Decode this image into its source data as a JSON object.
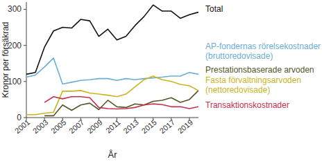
{
  "chart_data": {
    "type": "line",
    "x_label": "År",
    "y_label": "Kronor per försäkrad",
    "x": [
      2001,
      2002,
      2003,
      2004,
      2005,
      2006,
      2007,
      2008,
      2009,
      2010,
      2011,
      2012,
      2013,
      2014,
      2015,
      2016,
      2017,
      2018,
      2019,
      2020
    ],
    "xlim": [
      2001,
      2020
    ],
    "xticks": [
      2001,
      2003,
      2005,
      2007,
      2009,
      2011,
      2013,
      2015,
      2017,
      2019
    ],
    "ylim": [
      0,
      320
    ],
    "yticks": [
      0,
      100,
      200,
      300
    ],
    "grid": false,
    "series": [
      {
        "name": "Total",
        "color": "#111111",
        "values": [
          120,
          125,
          195,
          240,
          250,
          248,
          272,
          268,
          225,
          245,
          215,
          225,
          255,
          280,
          312,
          295,
          295,
          275,
          285,
          292
        ]
      },
      {
        "name": "AP-fondernas rörelsekostnader (bruttoredovisade)",
        "color": "#6aaed6",
        "values": [
          112,
          118,
          140,
          165,
          93,
          98,
          103,
          105,
          108,
          108,
          103,
          108,
          105,
          108,
          110,
          112,
          115,
          115,
          125,
          120
        ]
      },
      {
        "name": "Prestationsbaserade arvoden",
        "color": "#55552a",
        "values": [
          null,
          null,
          5,
          5,
          35,
          20,
          35,
          40,
          22,
          48,
          30,
          28,
          38,
          35,
          45,
          48,
          55,
          42,
          50,
          75
        ]
      },
      {
        "name": "Fasta förvaltningsarvoden (nettoredovisade)",
        "color": "#c9b41e",
        "values": [
          8,
          8,
          12,
          15,
          73,
          73,
          75,
          68,
          65,
          62,
          58,
          65,
          85,
          105,
          115,
          105,
          100,
          92,
          88,
          75
        ]
      },
      {
        "name": "Transaktionskostnader",
        "color": "#c4304c",
        "values": [
          null,
          null,
          42,
          58,
          52,
          58,
          58,
          55,
          28,
          25,
          24,
          25,
          28,
          35,
          38,
          36,
          30,
          30,
          25,
          30
        ]
      }
    ]
  }
}
